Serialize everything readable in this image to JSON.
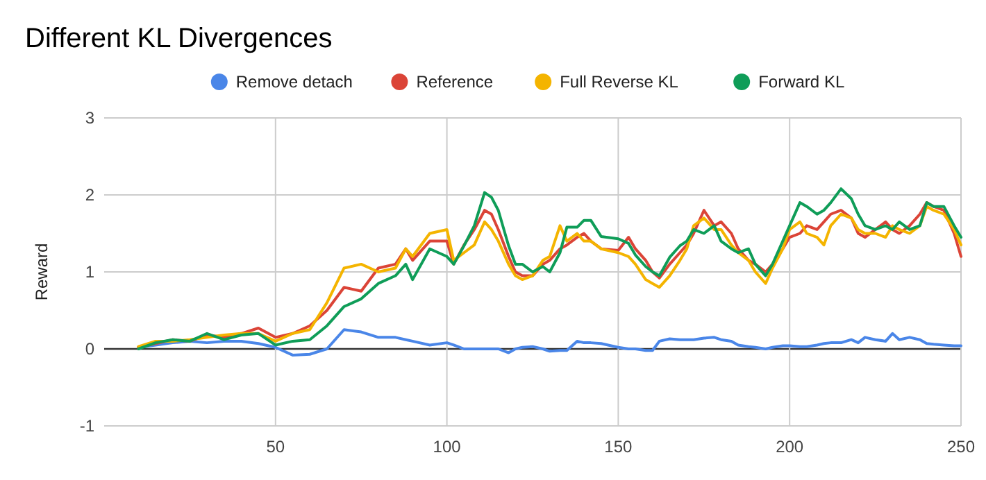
{
  "chart_data": {
    "type": "line",
    "title": "Different KL Divergences",
    "ylabel": "Reward",
    "x": [
      10,
      15,
      20,
      25,
      30,
      35,
      40,
      45,
      50,
      55,
      60,
      65,
      70,
      75,
      80,
      85,
      88,
      90,
      95,
      100,
      102,
      105,
      108,
      111,
      113,
      115,
      118,
      120,
      122,
      125,
      128,
      130,
      133,
      135,
      138,
      140,
      142,
      145,
      150,
      153,
      155,
      158,
      160,
      162,
      165,
      168,
      170,
      172,
      175,
      178,
      180,
      183,
      185,
      188,
      190,
      193,
      195,
      198,
      200,
      203,
      205,
      208,
      210,
      212,
      215,
      218,
      220,
      222,
      225,
      228,
      230,
      232,
      235,
      238,
      240,
      242,
      245,
      248,
      250
    ],
    "series": [
      {
        "name": "Remove detach",
        "color": "#4a86e8",
        "values": [
          0.02,
          0.05,
          0.08,
          0.1,
          0.08,
          0.1,
          0.1,
          0.07,
          0.02,
          -0.08,
          -0.07,
          0.0,
          0.25,
          0.22,
          0.15,
          0.15,
          0.12,
          0.1,
          0.05,
          0.08,
          0.05,
          0.0,
          0.0,
          0.0,
          0.0,
          0.0,
          -0.05,
          0.0,
          0.02,
          0.03,
          0.0,
          -0.03,
          -0.02,
          -0.02,
          0.1,
          0.08,
          0.08,
          0.07,
          0.02,
          0.0,
          0.0,
          -0.02,
          -0.02,
          0.1,
          0.13,
          0.12,
          0.12,
          0.12,
          0.14,
          0.15,
          0.12,
          0.1,
          0.05,
          0.03,
          0.02,
          0.0,
          0.02,
          0.04,
          0.04,
          0.03,
          0.03,
          0.05,
          0.07,
          0.08,
          0.08,
          0.12,
          0.08,
          0.15,
          0.12,
          0.1,
          0.2,
          0.12,
          0.15,
          0.12,
          0.07,
          0.06,
          0.05,
          0.04,
          0.04
        ]
      },
      {
        "name": "Reference",
        "color": "#db4437",
        "values": [
          0.02,
          0.07,
          0.12,
          0.1,
          0.18,
          0.15,
          0.2,
          0.27,
          0.15,
          0.2,
          0.3,
          0.5,
          0.8,
          0.75,
          1.05,
          1.1,
          1.3,
          1.15,
          1.4,
          1.4,
          1.1,
          1.35,
          1.55,
          1.8,
          1.75,
          1.55,
          1.2,
          1.0,
          0.95,
          0.95,
          1.1,
          1.15,
          1.3,
          1.35,
          1.45,
          1.5,
          1.4,
          1.3,
          1.28,
          1.45,
          1.3,
          1.15,
          1.0,
          0.92,
          1.1,
          1.25,
          1.35,
          1.5,
          1.8,
          1.6,
          1.65,
          1.5,
          1.3,
          1.15,
          1.1,
          1.0,
          1.1,
          1.3,
          1.45,
          1.5,
          1.6,
          1.55,
          1.65,
          1.75,
          1.8,
          1.7,
          1.5,
          1.45,
          1.55,
          1.65,
          1.55,
          1.5,
          1.6,
          1.75,
          1.9,
          1.85,
          1.8,
          1.5,
          1.2
        ]
      },
      {
        "name": "Full Reverse KL",
        "color": "#f4b400",
        "values": [
          0.03,
          0.1,
          0.1,
          0.12,
          0.15,
          0.18,
          0.2,
          0.2,
          0.1,
          0.2,
          0.25,
          0.6,
          1.05,
          1.1,
          1.0,
          1.05,
          1.3,
          1.2,
          1.5,
          1.55,
          1.15,
          1.25,
          1.35,
          1.65,
          1.55,
          1.4,
          1.1,
          0.95,
          0.9,
          0.95,
          1.15,
          1.2,
          1.6,
          1.4,
          1.5,
          1.4,
          1.4,
          1.3,
          1.25,
          1.2,
          1.1,
          0.9,
          0.85,
          0.8,
          0.95,
          1.15,
          1.3,
          1.6,
          1.7,
          1.55,
          1.55,
          1.35,
          1.25,
          1.15,
          1.0,
          0.85,
          1.05,
          1.3,
          1.55,
          1.65,
          1.5,
          1.45,
          1.35,
          1.6,
          1.75,
          1.7,
          1.55,
          1.5,
          1.5,
          1.45,
          1.6,
          1.55,
          1.5,
          1.6,
          1.85,
          1.8,
          1.75,
          1.55,
          1.35
        ]
      },
      {
        "name": "Forward KL",
        "color": "#0f9d58",
        "values": [
          0.0,
          0.08,
          0.12,
          0.1,
          0.2,
          0.12,
          0.18,
          0.2,
          0.05,
          0.1,
          0.12,
          0.3,
          0.55,
          0.65,
          0.85,
          0.95,
          1.1,
          0.9,
          1.3,
          1.2,
          1.1,
          1.34,
          1.6,
          2.03,
          1.97,
          1.8,
          1.34,
          1.1,
          1.1,
          1.0,
          1.07,
          1.0,
          1.25,
          1.58,
          1.58,
          1.67,
          1.67,
          1.46,
          1.43,
          1.37,
          1.22,
          1.07,
          1.0,
          0.95,
          1.19,
          1.34,
          1.4,
          1.55,
          1.5,
          1.6,
          1.4,
          1.3,
          1.25,
          1.3,
          1.1,
          0.95,
          1.1,
          1.4,
          1.6,
          1.9,
          1.85,
          1.75,
          1.8,
          1.9,
          2.08,
          1.95,
          1.75,
          1.6,
          1.55,
          1.6,
          1.55,
          1.65,
          1.55,
          1.6,
          1.9,
          1.85,
          1.85,
          1.6,
          1.45
        ]
      }
    ],
    "xlim": [
      0,
      250
    ],
    "xticks": [
      50,
      100,
      150,
      200,
      250
    ],
    "ylim": [
      -1,
      3
    ],
    "yticks": [
      -1,
      0,
      1,
      2,
      3
    ],
    "grid": true,
    "legend": "top"
  }
}
